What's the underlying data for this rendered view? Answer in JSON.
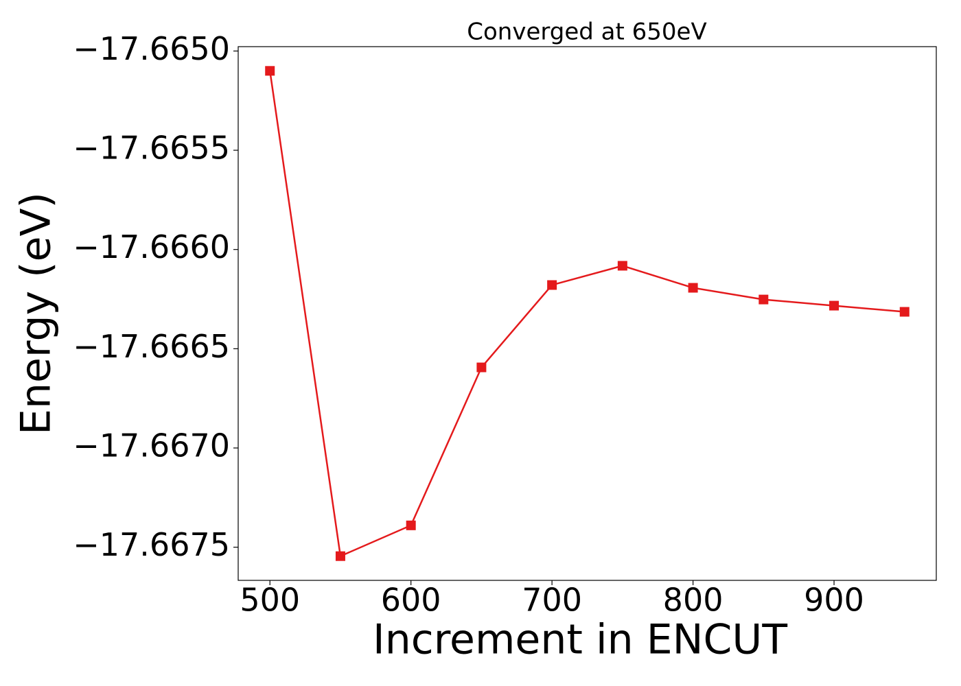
{
  "chart_data": {
    "type": "line",
    "title": "Converged at 650eV",
    "x_label": "Increment in ENCUT",
    "y_label": "Energy (eV)",
    "x": [
      500,
      550,
      600,
      650,
      700,
      750,
      800,
      850,
      900,
      950
    ],
    "series": [
      {
        "color": "#e41a1c",
        "marker": "square",
        "values": [
          -17.6651,
          -17.667545,
          -17.66739,
          -17.666594,
          -17.666179,
          -17.666082,
          -17.666193,
          -17.666252,
          -17.666283,
          -17.666314
        ]
      }
    ],
    "xlim": [
      477.5,
      972.5
    ],
    "xticks": [
      500,
      600,
      700,
      800,
      900
    ],
    "ylim": [
      -17.667667,
      -17.664978
    ],
    "yticks": [
      {
        "value": -17.665,
        "label": "−17.6650"
      },
      {
        "value": -17.6655,
        "label": "−17.6655"
      },
      {
        "value": -17.666,
        "label": "−17.6660"
      },
      {
        "value": -17.6665,
        "label": "−17.6665"
      },
      {
        "value": -17.667,
        "label": "−17.6670"
      },
      {
        "value": -17.6675,
        "label": "−17.6675"
      }
    ],
    "grid": false
  }
}
